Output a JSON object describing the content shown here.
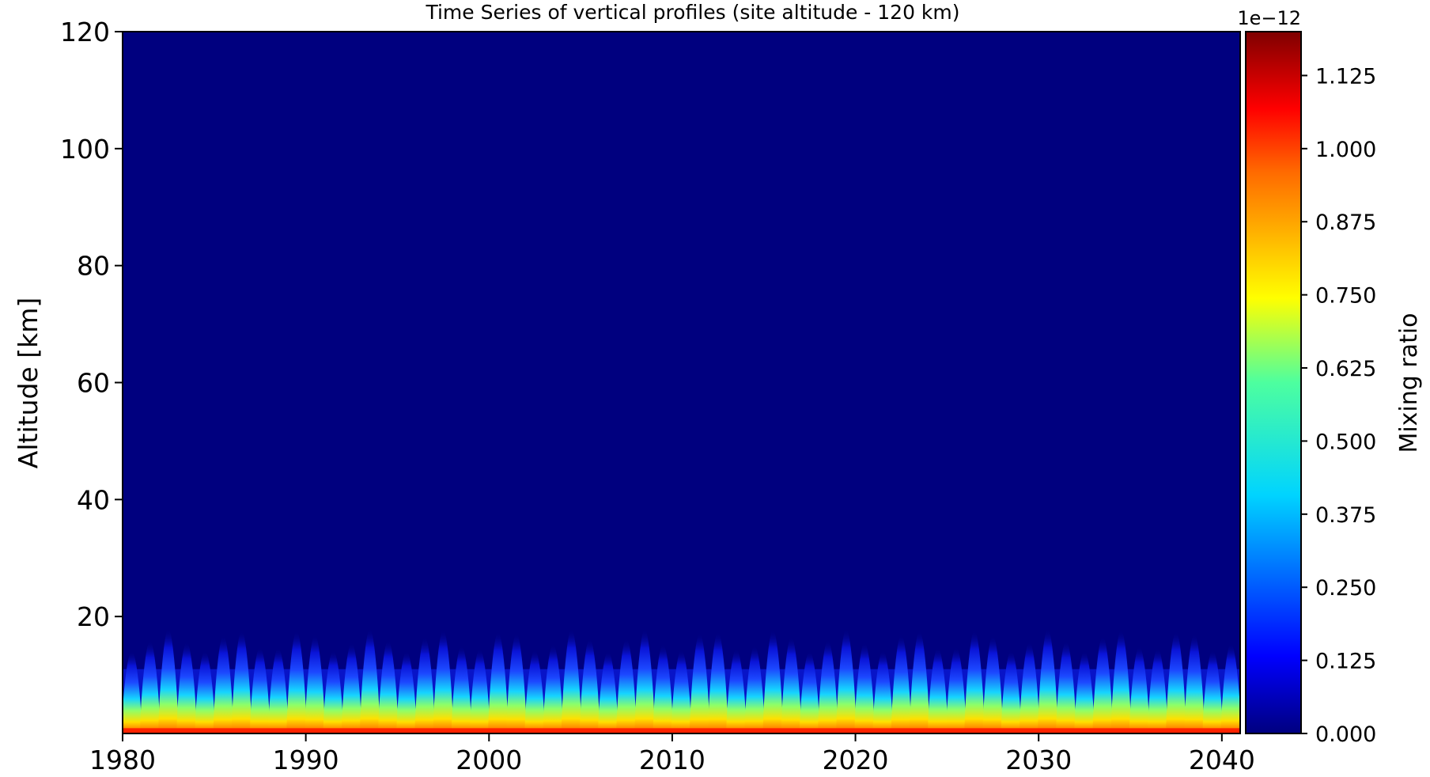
{
  "chart_data": {
    "type": "heatmap",
    "title": "Time Series of vertical profiles (site altitude - 120 km)",
    "xlabel": "",
    "ylabel": "Altitude [km]",
    "xlim": [
      1980,
      2041
    ],
    "ylim": [
      0,
      120
    ],
    "x_ticks": [
      "1980",
      "1990",
      "2000",
      "2010",
      "2020",
      "2030",
      "2040"
    ],
    "y_ticks": [
      "20",
      "40",
      "60",
      "80",
      "100",
      "120"
    ],
    "x_tick_values": [
      1980,
      1990,
      2000,
      2010,
      2020,
      2030,
      2040
    ],
    "y_tick_values": [
      20,
      40,
      60,
      80,
      100,
      120
    ],
    "colorbar": {
      "label": "Mixing ratio",
      "offset_text": "1e−12",
      "ticks": [
        "0.000",
        "0.125",
        "0.250",
        "0.375",
        "0.500",
        "0.625",
        "0.750",
        "0.875",
        "1.000",
        "1.125"
      ],
      "tick_values": [
        0.0,
        0.125,
        0.25,
        0.375,
        0.5,
        0.625,
        0.75,
        0.875,
        1.0,
        1.125
      ],
      "range": [
        0.0,
        1.2
      ],
      "colormap": "jet"
    },
    "pattern": {
      "description_values": {
        "surface_max": 1.15,
        "cycle_period_years": 1,
        "top_extent_km": 16,
        "minimum_value": 0.0
      }
    },
    "grid": false,
    "colors": {
      "background_field": "#00007f",
      "axis": "#000000"
    }
  }
}
